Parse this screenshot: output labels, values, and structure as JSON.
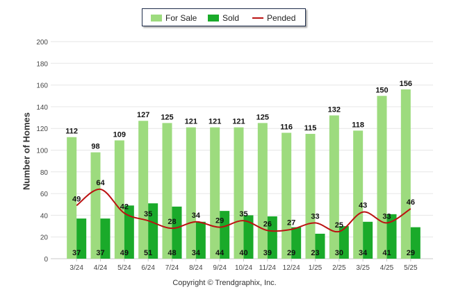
{
  "legend": {
    "for_sale": "For Sale",
    "sold": "Sold",
    "pended": "Pended"
  },
  "copyright": "Copyright © Trendgraphix, Inc.",
  "colors": {
    "for_sale": "#9ddb7e",
    "sold": "#1aaa2a",
    "pended": "#bb1111",
    "grid": "#e6e6e6"
  },
  "chart_data": {
    "type": "bar",
    "categories": [
      "3/24",
      "4/24",
      "5/24",
      "6/24",
      "7/24",
      "8/24",
      "9/24",
      "10/24",
      "11/24",
      "12/24",
      "1/25",
      "2/25",
      "3/25",
      "4/25",
      "5/25"
    ],
    "series": [
      {
        "name": "For Sale",
        "type": "bar",
        "values": [
          112,
          98,
          109,
          127,
          125,
          121,
          121,
          121,
          125,
          116,
          115,
          132,
          118,
          150,
          156
        ]
      },
      {
        "name": "Sold",
        "type": "bar",
        "values": [
          37,
          37,
          49,
          51,
          48,
          34,
          44,
          40,
          39,
          29,
          23,
          30,
          34,
          41,
          29
        ]
      },
      {
        "name": "Pended",
        "type": "line",
        "values": [
          49,
          64,
          42,
          35,
          28,
          34,
          29,
          35,
          26,
          27,
          33,
          25,
          43,
          33,
          46
        ]
      }
    ],
    "ylabel": "Number of Homes",
    "xlabel": "",
    "ylim": [
      0,
      200
    ],
    "yticks": [
      0,
      20,
      40,
      60,
      80,
      100,
      120,
      140,
      160,
      180,
      200
    ],
    "grid": true,
    "legend_position": "top-center"
  }
}
